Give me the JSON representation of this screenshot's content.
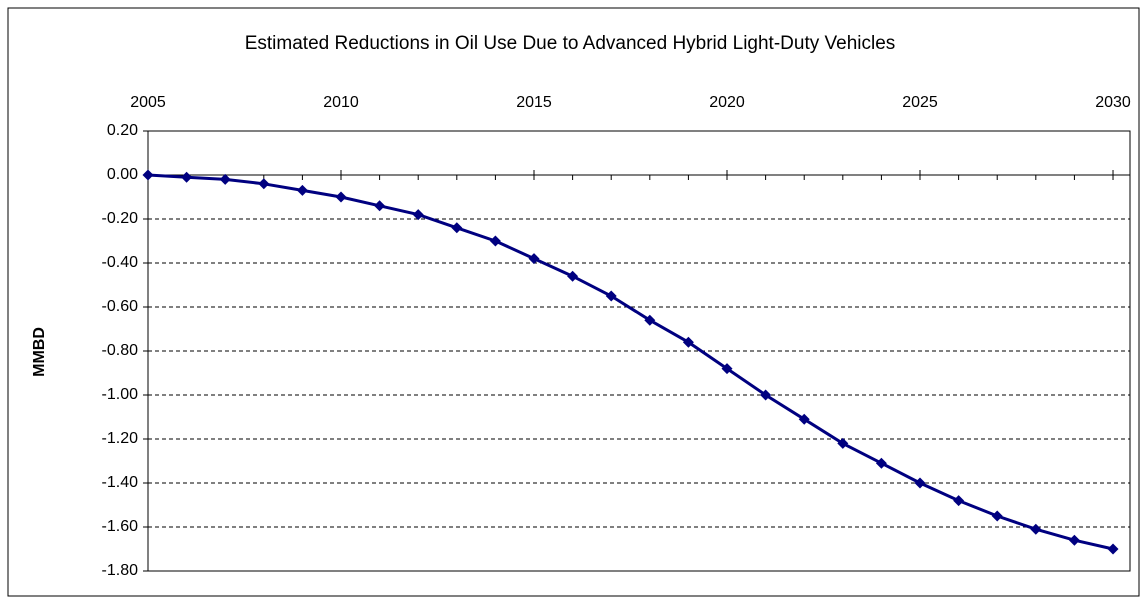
{
  "chart_data": {
    "type": "line",
    "title": "Estimated Reductions in Oil Use Due to Advanced Hybrid Light-Duty Vehicles",
    "y_label": "MMBD",
    "x": [
      2005,
      2006,
      2007,
      2008,
      2009,
      2010,
      2011,
      2012,
      2013,
      2014,
      2015,
      2016,
      2017,
      2018,
      2019,
      2020,
      2021,
      2022,
      2023,
      2024,
      2025,
      2026,
      2027,
      2028,
      2029,
      2030
    ],
    "series": [
      {
        "color": "#000080",
        "values": [
          0.0,
          -0.01,
          -0.02,
          -0.04,
          -0.07,
          -0.1,
          -0.14,
          -0.18,
          -0.24,
          -0.3,
          -0.38,
          -0.46,
          -0.55,
          -0.66,
          -0.76,
          -0.88,
          -1.0,
          -1.11,
          -1.22,
          -1.31,
          -1.4,
          -1.48,
          -1.55,
          -1.61,
          -1.66,
          -1.7
        ]
      }
    ],
    "xlim": [
      2005,
      2030.44
    ],
    "xticks": [
      2005,
      2010,
      2015,
      2020,
      2025,
      2030
    ],
    "ylim": [
      -1.8,
      0.2
    ],
    "yticks": [
      {
        "value": 0.2,
        "label": "0.20"
      },
      {
        "value": 0,
        "label": "0.00"
      },
      {
        "value": -0.2,
        "label": "-0.20"
      },
      {
        "value": -0.4,
        "label": "-0.40"
      },
      {
        "value": -0.6,
        "label": "-0.60"
      },
      {
        "value": -0.8,
        "label": "-0.80"
      },
      {
        "value": -1,
        "label": "-1.00"
      },
      {
        "value": -1.2,
        "label": "-1.20"
      },
      {
        "value": -1.4,
        "label": "-1.40"
      },
      {
        "value": -1.6,
        "label": "-1.60"
      },
      {
        "value": -1.8,
        "label": "-1.80"
      }
    ],
    "grid": true
  }
}
